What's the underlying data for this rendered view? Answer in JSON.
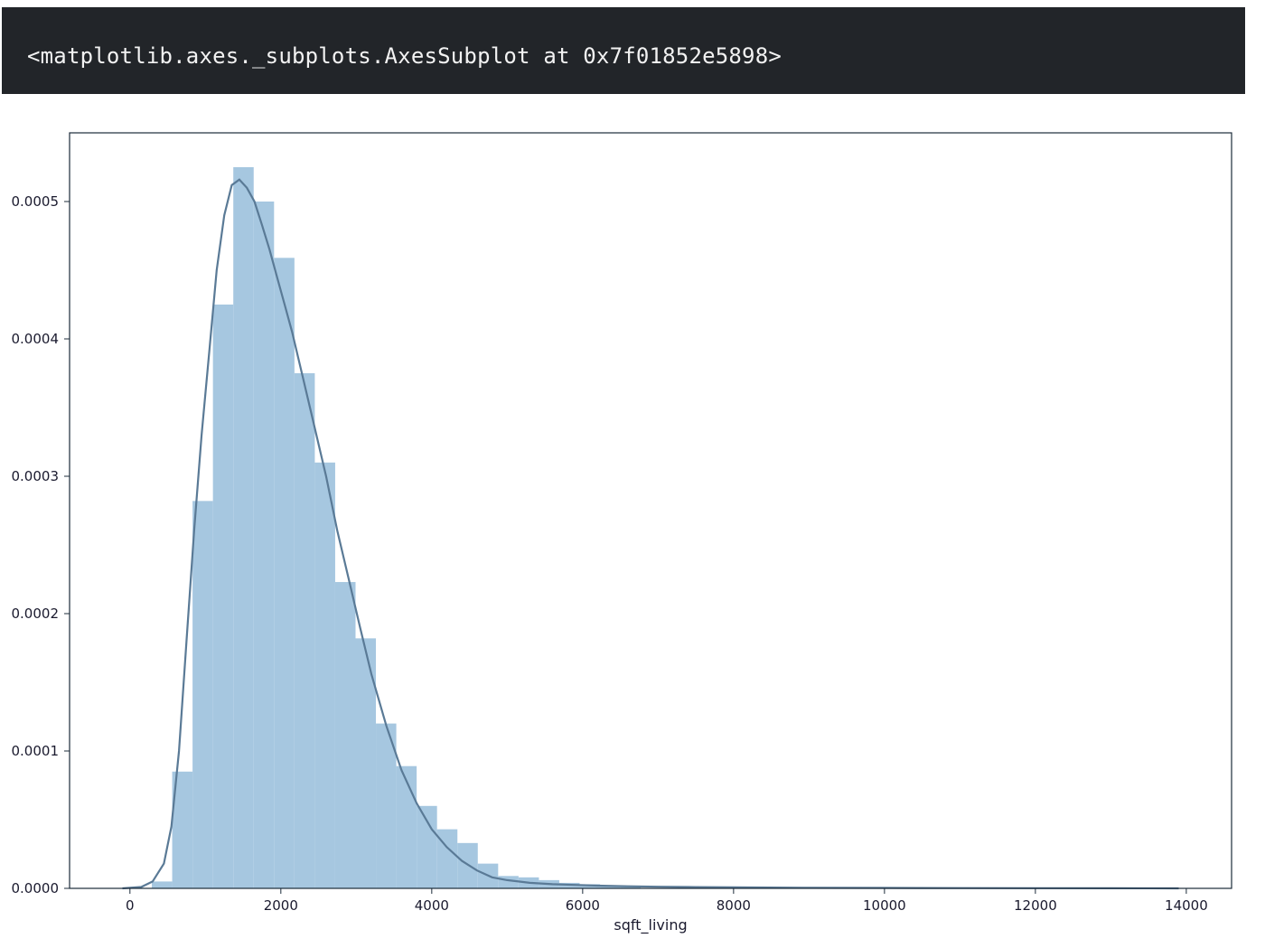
{
  "output": {
    "repr_text": "<matplotlib.axes._subplots.AxesSubplot at 0x7f01852e5898>"
  },
  "colors": {
    "output_bg": "#222529",
    "bar_fill": "#a6c7e0",
    "kde_line": "#5a7a96",
    "axes_frame": "#1c2b3a"
  },
  "chart_data": {
    "type": "bar",
    "title": "",
    "xlabel": "sqft_living",
    "ylabel": "",
    "xlim": [
      -800,
      14600
    ],
    "ylim": [
      0,
      0.00055
    ],
    "grid": false,
    "xticks": [
      0,
      2000,
      4000,
      6000,
      8000,
      10000,
      12000,
      14000
    ],
    "xtick_labels": [
      "0",
      "2000",
      "4000",
      "6000",
      "8000",
      "10000",
      "12000",
      "14000"
    ],
    "yticks": [
      0,
      0.0001,
      0.0002,
      0.0003,
      0.0004,
      0.0005
    ],
    "ytick_labels": [
      "0.0000",
      "0.0001",
      "0.0002",
      "0.0003",
      "0.0004",
      "0.0005"
    ],
    "histogram": {
      "bin_width": 270,
      "bin_starts": [
        290,
        560,
        830,
        1100,
        1370,
        1640,
        1910,
        2180,
        2450,
        2720,
        2990,
        3260,
        3530,
        3800,
        4070,
        4340,
        4610,
        4880,
        5150,
        5420,
        5690,
        5960,
        6230,
        6500
      ],
      "density": [
        5e-06,
        8.5e-05,
        0.000282,
        0.000425,
        0.000525,
        0.0005,
        0.000459,
        0.000375,
        0.00031,
        0.000223,
        0.000182,
        0.00012,
        8.9e-05,
        6e-05,
        4.3e-05,
        3.3e-05,
        1.8e-05,
        9e-06,
        8e-06,
        6e-06,
        4e-06,
        3e-06,
        2e-06,
        1.5e-06
      ]
    },
    "kde": {
      "x": [
        -100,
        150,
        300,
        450,
        550,
        650,
        750,
        850,
        950,
        1050,
        1150,
        1250,
        1350,
        1450,
        1550,
        1650,
        1750,
        1850,
        1950,
        2050,
        2150,
        2300,
        2450,
        2600,
        2750,
        2900,
        3050,
        3200,
        3400,
        3600,
        3800,
        4000,
        4200,
        4400,
        4600,
        4800,
        5000,
        5300,
        5600,
        5900,
        6200,
        6600,
        7000,
        7500,
        8000,
        9000,
        10000,
        11000,
        12000,
        13000,
        13900
      ],
      "y": [
        0,
        1e-06,
        5e-06,
        1.8e-05,
        4.5e-05,
        0.0001,
        0.00018,
        0.00026,
        0.00033,
        0.00039,
        0.00045,
        0.00049,
        0.000512,
        0.000516,
        0.00051,
        0.0005,
        0.000483,
        0.000465,
        0.000445,
        0.000425,
        0.000405,
        0.00037,
        0.000335,
        0.0003,
        0.00026,
        0.000225,
        0.00019,
        0.000156,
        0.000118,
        8.6e-05,
        6.2e-05,
        4.3e-05,
        3e-05,
        2e-05,
        1.3e-05,
        8e-06,
        6e-06,
        4e-06,
        3e-06,
        2.5e-06,
        2e-06,
        1.5e-06,
        1.2e-06,
        9e-07,
        7e-07,
        4e-07,
        3e-07,
        2e-07,
        1e-07,
        5e-08,
        0
      ]
    }
  }
}
